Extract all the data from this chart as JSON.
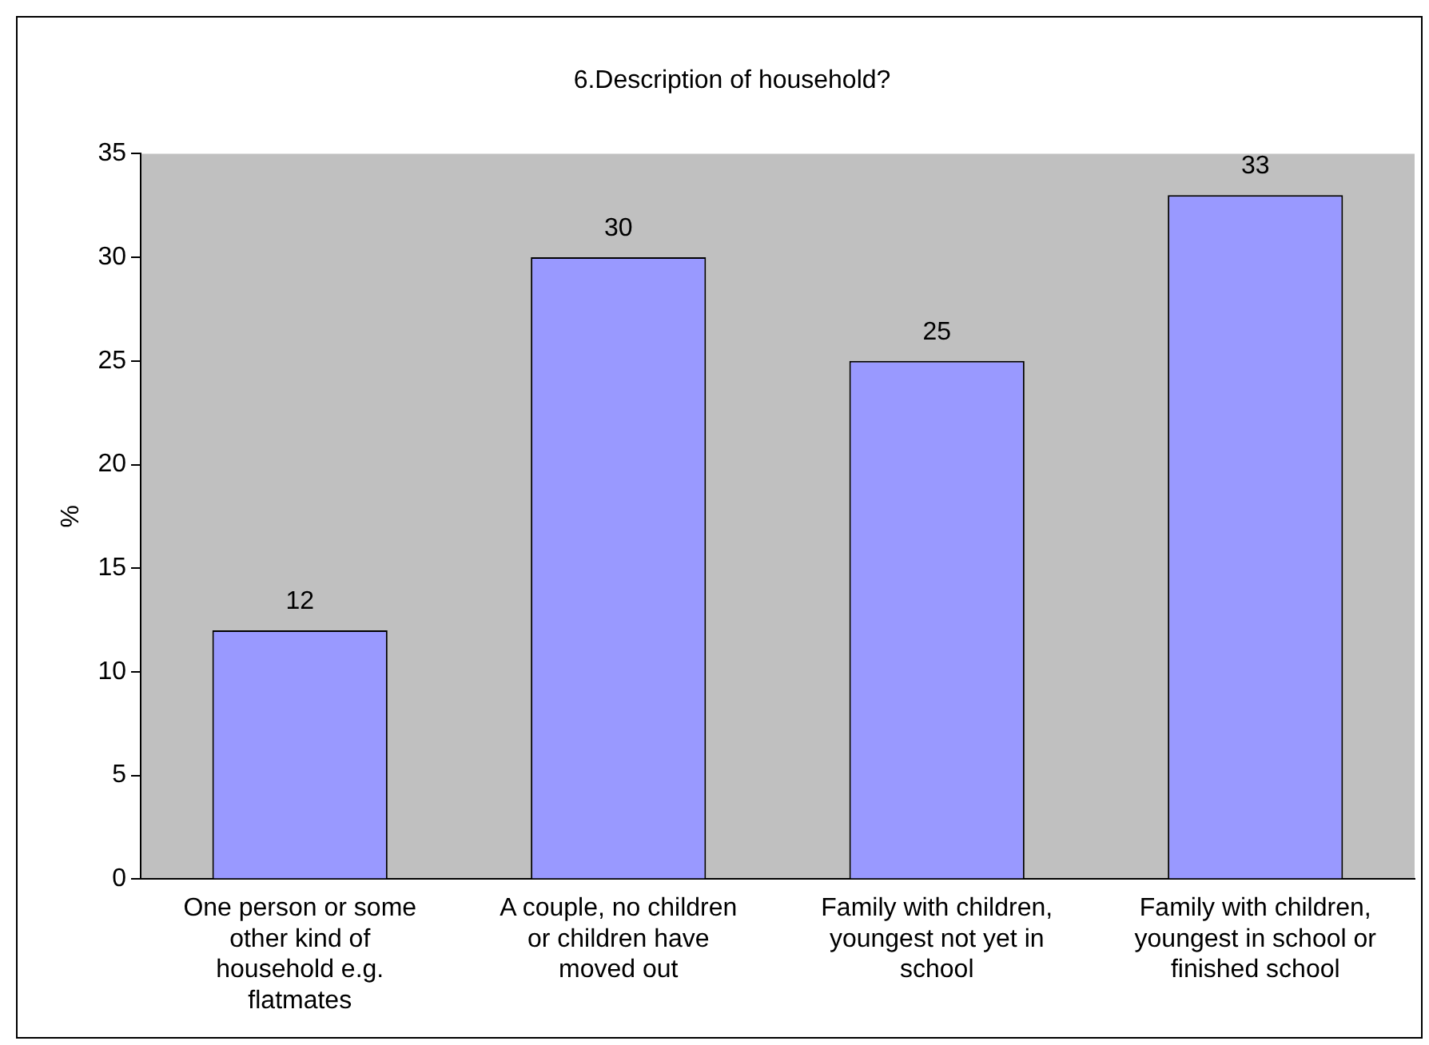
{
  "chart_data": {
    "type": "bar",
    "title": "6.Description of household?",
    "ylabel": "%",
    "categories": [
      "One person or some other kind of household e.g. flatmates",
      "A couple, no children or children have moved out",
      "Family with children, youngest not yet in school",
      "Family with children, youngest in school or finished school"
    ],
    "values": [
      12,
      30,
      25,
      33
    ],
    "color": "#9999ff",
    "ylim": [
      0,
      35
    ],
    "yticks": [
      0,
      5,
      10,
      15,
      20,
      25,
      30,
      35
    ],
    "grid": false,
    "data_labels": true
  }
}
